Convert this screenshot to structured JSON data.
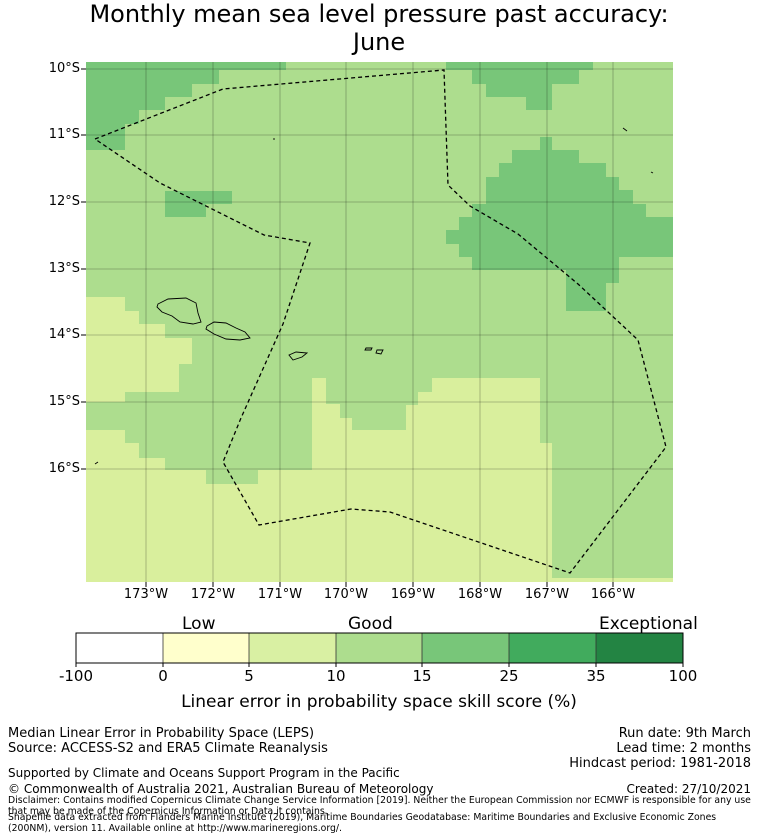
{
  "title": {
    "line1": "Monthly mean sea level pressure past accuracy:",
    "line2": "June"
  },
  "map": {
    "lat_labels": [
      "10°S",
      "11°S",
      "12°S",
      "13°S",
      "14°S",
      "15°S",
      "16°S"
    ],
    "lon_labels": [
      "173°W",
      "172°W",
      "171°W",
      "170°W",
      "169°W",
      "168°W",
      "167°W",
      "166°W"
    ],
    "colors": {
      "band_0_5": "#d9ef9d",
      "band_5_10": "#addd8e",
      "band_10_15": "#78c679",
      "boundary": "#000000"
    }
  },
  "colorbar": {
    "category_labels": [
      "Low",
      "Good",
      "Exceptional"
    ],
    "tick_labels": [
      "-100",
      "0",
      "5",
      "10",
      "15",
      "25",
      "35",
      "100"
    ],
    "colors": [
      "#ffffff",
      "#ffffcc",
      "#d9f0a3",
      "#addd8e",
      "#78c679",
      "#41ab5d",
      "#238443"
    ],
    "title": "Linear error in probability space skill score (%)"
  },
  "info": {
    "method": "Median Linear Error in Probability Space (LEPS)",
    "source": "Source: ACCESS-S2 and ERA5 Climate Reanalysis",
    "run_date": "Run date: 9th March",
    "lead_time": "Lead time: 2 months",
    "hindcast": "Hindcast period: 1981-2018",
    "supported": "Supported by Climate and Oceans Support Program in the Pacific",
    "copyright": "© Commonwealth of Australia 2021, Australian Bureau of Meteorology",
    "created": "Created: 27/10/2021",
    "disclaimer": "Disclaimer: Contains modified Copernicus Climate Change Service Information [2019]. Neither the European Commission nor ECMWF is responsible for any use that may be made of the Copernicus Information or Data it contains.",
    "shapefile": "Shapefile data extracted from Flanders Marine Institute (2019), Maritime Boundaries Geodatabase: Maritime Boundaries and Exclusive Economic Zones (200NM), version 11. Available online at http://www.marineregions.org/."
  }
}
